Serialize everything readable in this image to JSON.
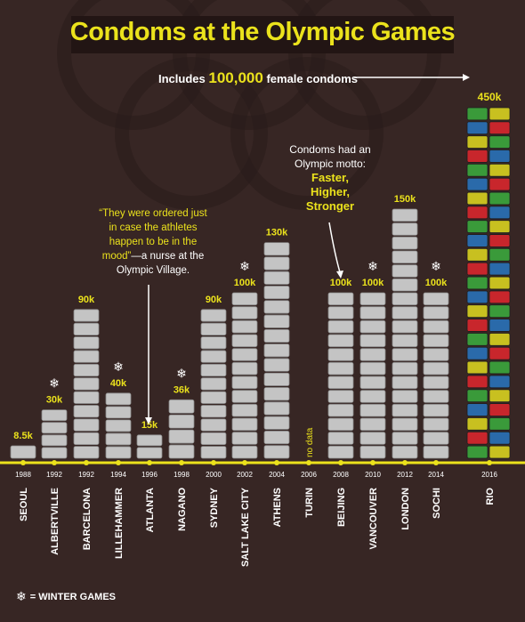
{
  "title": "Condoms at the Olympic Games",
  "notes": {
    "female_prefix": "Includes",
    "female_number": "100,000",
    "female_suffix": "female condoms",
    "quote_text": "“They were ordered just in case the athletes happen to be in the mood”",
    "quote_source": "—a nurse at the Olympic Village.",
    "motto_intro": "Condoms had an Olympic motto:",
    "motto_words": [
      "Faster,",
      "Higher,",
      "Stronger"
    ]
  },
  "legend": {
    "symbol": "❄",
    "label": "= WINTER GAMES"
  },
  "colors": {
    "background": "#372624",
    "accent": "#ebe21c",
    "text": "#ffffff",
    "packet_silver": "#c4c4c4",
    "rio_packets": [
      "#3a9a3a",
      "#c8262c",
      "#c8c020",
      "#2a6aaa"
    ]
  },
  "chart_data": {
    "type": "bar",
    "title": "Condoms at the Olympic Games",
    "categories": [
      "1988",
      "1992",
      "1992",
      "1994",
      "1996",
      "1998",
      "2000",
      "2002",
      "2004",
      "2006",
      "2008",
      "2010",
      "2012",
      "2014",
      "2016"
    ],
    "cities": [
      "SEOUL",
      "ALBERTVILLE",
      "BARCELONA",
      "LILLEHAMMER",
      "ATLANTA",
      "NAGANO",
      "SYDNEY",
      "SALT LAKE CITY",
      "ATHENS",
      "TURIN",
      "BEIJING",
      "VANCOUVER",
      "LONDON",
      "SOCHI",
      "RIO"
    ],
    "values": [
      8500,
      30000,
      90000,
      40000,
      15000,
      36000,
      90000,
      100000,
      130000,
      null,
      100000,
      100000,
      150000,
      100000,
      450000
    ],
    "value_labels": [
      "8.5k",
      "30k",
      "90k",
      "40k",
      "15k",
      "36k",
      "90k",
      "100k",
      "130k",
      "no data",
      "100k",
      "100k",
      "150k",
      "100k",
      "450k"
    ],
    "winter": [
      false,
      true,
      false,
      true,
      false,
      true,
      false,
      true,
      false,
      false,
      false,
      true,
      false,
      true,
      false
    ],
    "ylim": [
      0,
      450000
    ]
  }
}
